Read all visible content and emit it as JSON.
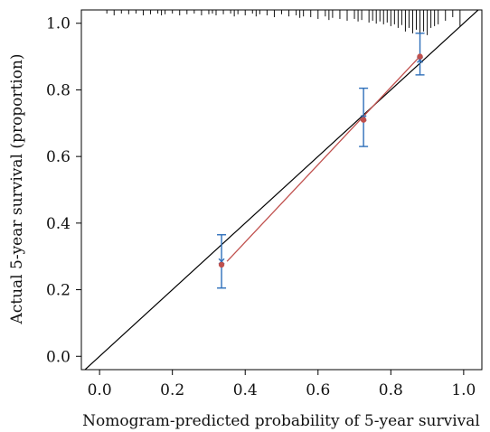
{
  "chart_data": {
    "type": "scatter",
    "title": "",
    "xlabel": "Nomogram-predicted probability of 5-year survival",
    "ylabel": "Actual 5-year survival (proportion)",
    "xlim": [
      -0.05,
      1.05
    ],
    "ylim": [
      -0.04,
      1.04
    ],
    "x_ticks": [
      0.0,
      0.2,
      0.4,
      0.6,
      0.8,
      1.0
    ],
    "y_ticks": [
      0.0,
      0.2,
      0.4,
      0.6,
      0.8,
      1.0
    ],
    "x_tick_labels": [
      "0.0",
      "0.2",
      "0.4",
      "0.6",
      "0.8",
      "1.0"
    ],
    "y_tick_labels": [
      "0.0",
      "0.2",
      "0.4",
      "0.6",
      "0.8",
      "1.0"
    ],
    "grid": false,
    "legend": "none",
    "reference_line": {
      "from": [
        -0.05,
        -0.05
      ],
      "to": [
        1.05,
        1.05
      ],
      "color": "#000000"
    },
    "series": [
      {
        "x": [
          0.335,
          0.725,
          0.88
        ],
        "y": [
          0.275,
          0.71,
          0.9
        ],
        "line_x": [
          0.35,
          0.875
        ],
        "line_y": [
          0.285,
          0.895
        ],
        "color": "#c0504d"
      },
      {
        "x": [
          0.335,
          0.725,
          0.88
        ],
        "y": [
          0.285,
          0.715,
          0.89
        ],
        "y_lower": [
          0.205,
          0.63,
          0.845
        ],
        "y_upper": [
          0.365,
          0.805,
          0.97
        ],
        "color": "#2e6fba"
      }
    ],
    "rug": {
      "color": "#111111",
      "x": [
        0.02,
        0.04,
        0.06,
        0.08,
        0.1,
        0.12,
        0.14,
        0.16,
        0.17,
        0.18,
        0.2,
        0.22,
        0.24,
        0.26,
        0.28,
        0.3,
        0.31,
        0.32,
        0.34,
        0.36,
        0.37,
        0.38,
        0.4,
        0.42,
        0.43,
        0.44,
        0.46,
        0.48,
        0.5,
        0.52,
        0.54,
        0.55,
        0.56,
        0.58,
        0.6,
        0.62,
        0.63,
        0.64,
        0.66,
        0.68,
        0.7,
        0.71,
        0.72,
        0.74,
        0.75,
        0.76,
        0.77,
        0.78,
        0.79,
        0.8,
        0.81,
        0.82,
        0.83,
        0.84,
        0.85,
        0.86,
        0.87,
        0.88,
        0.89,
        0.9,
        0.91,
        0.92,
        0.93,
        0.95,
        0.97,
        0.99
      ],
      "h": [
        0.01,
        0.015,
        0.01,
        0.012,
        0.01,
        0.015,
        0.012,
        0.01,
        0.015,
        0.012,
        0.01,
        0.015,
        0.012,
        0.01,
        0.015,
        0.012,
        0.01,
        0.015,
        0.012,
        0.01,
        0.018,
        0.012,
        0.015,
        0.01,
        0.018,
        0.012,
        0.015,
        0.02,
        0.012,
        0.018,
        0.015,
        0.022,
        0.018,
        0.02,
        0.025,
        0.018,
        0.028,
        0.022,
        0.025,
        0.03,
        0.025,
        0.032,
        0.028,
        0.035,
        0.03,
        0.038,
        0.032,
        0.04,
        0.035,
        0.045,
        0.04,
        0.05,
        0.042,
        0.06,
        0.05,
        0.065,
        0.055,
        0.075,
        0.06,
        0.07,
        0.05,
        0.045,
        0.04,
        0.03,
        0.02,
        0.045
      ]
    }
  }
}
